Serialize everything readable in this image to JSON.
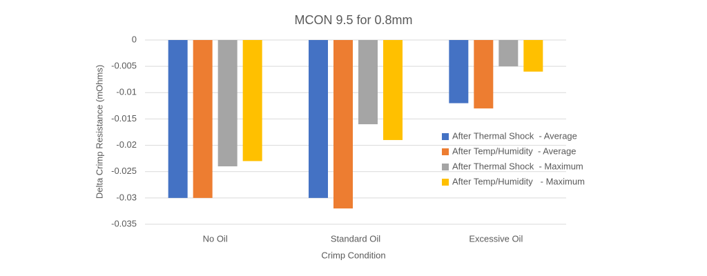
{
  "chart_data": {
    "type": "bar",
    "title": "MCON 9.5 for 0.8mm",
    "x_label": "Crimp Condition",
    "y_label": "Delta Crimp Resistance (mOhms)",
    "categories": [
      "No Oil",
      "Standard Oil",
      "Excessive Oil"
    ],
    "series": [
      {
        "name": "After Thermal Shock  - Average",
        "color": "#4472c4",
        "values": [
          -0.03,
          -0.03,
          -0.012
        ]
      },
      {
        "name": "After Temp/Humidity  - Average",
        "color": "#ed7d31",
        "values": [
          -0.03,
          -0.032,
          -0.013
        ]
      },
      {
        "name": "After Thermal Shock  - Maximum",
        "color": "#a5a5a5",
        "values": [
          -0.024,
          -0.016,
          -0.005
        ]
      },
      {
        "name": "After Temp/Humidity   - Maximum",
        "color": "#ffc000",
        "values": [
          -0.023,
          -0.019,
          -0.006
        ]
      }
    ],
    "ylim": [
      -0.035,
      0
    ],
    "yticks": [
      0,
      -0.005,
      -0.01,
      -0.015,
      -0.02,
      -0.025,
      -0.03,
      -0.035
    ],
    "grid": true,
    "legend": "right"
  }
}
